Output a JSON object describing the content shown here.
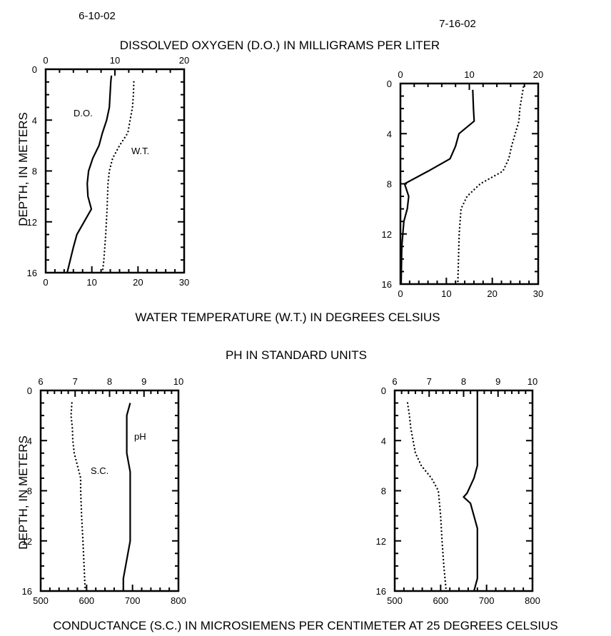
{
  "labels": {
    "date_left": "6-10-02",
    "date_right": "7-16-02",
    "do_axis": "DISSOLVED OXYGEN (D.O.) IN MILLIGRAMS PER LITER",
    "wt_axis": "WATER TEMPERATURE (W.T.) IN DEGREES CELSIUS",
    "ph_axis": "PH IN STANDARD UNITS",
    "sc_axis": "CONDUCTANCE (S.C.) IN MICROSIEMENS PER CENTIMETER AT 25 DEGREES CELSIUS",
    "depth_axis": "DEPTH, IN METERS"
  },
  "chart_data": [
    {
      "type": "line",
      "date": "6-10-02",
      "ylabel": "DEPTH, IN METERS",
      "ylim": [
        0,
        16
      ],
      "y_inverted": true,
      "yticks": [
        0,
        4,
        8,
        12,
        16
      ],
      "top_axis": {
        "label": "DISSOLVED OXYGEN (D.O.) IN MILLIGRAMS PER LITER",
        "lim": [
          0,
          20
        ],
        "ticks": [
          0,
          10,
          20
        ]
      },
      "bottom_axis": {
        "label": "WATER TEMPERATURE (W.T.) IN DEGREES CELSIUS",
        "lim": [
          0,
          30
        ],
        "ticks": [
          0,
          10,
          20,
          30
        ]
      },
      "series": [
        {
          "name": "D.O.",
          "axis": "top",
          "style": "solid",
          "x": [
            9.5,
            9.4,
            9.3,
            9.2,
            8.8,
            8.2,
            7.7,
            6.8,
            6.2,
            6.0,
            6.1,
            6.6,
            4.5,
            4.0,
            3.1
          ],
          "y": [
            0.5,
            1,
            2,
            3,
            4,
            5,
            6,
            7,
            8,
            9,
            10,
            11,
            13,
            14,
            16
          ]
        },
        {
          "name": "W.T.",
          "axis": "bottom",
          "style": "dotted",
          "x": [
            19.1,
            19.0,
            18.8,
            18.3,
            17.8,
            16.0,
            14.5,
            13.8,
            13.5,
            13.3,
            13.0,
            12.6,
            12.3
          ],
          "y": [
            1,
            2,
            3,
            4,
            5,
            6,
            7,
            8,
            9,
            11,
            13,
            15,
            16
          ]
        }
      ]
    },
    {
      "type": "line",
      "date": "7-16-02",
      "ylabel": "",
      "ylim": [
        0,
        16
      ],
      "y_inverted": true,
      "yticks": [
        0,
        4,
        8,
        12,
        16
      ],
      "top_axis": {
        "label": "",
        "lim": [
          0,
          20
        ],
        "ticks": [
          0,
          10,
          20
        ]
      },
      "bottom_axis": {
        "label": "",
        "lim": [
          0,
          30
        ],
        "ticks": [
          0,
          10,
          20,
          30
        ]
      },
      "series": [
        {
          "name": "",
          "axis": "top",
          "style": "solid",
          "x": [
            10.5,
            10.6,
            10.7,
            8.5,
            8.0,
            7.2,
            4.0,
            0.6,
            1.2,
            1.0,
            0.5,
            0.2,
            0.1
          ],
          "y": [
            0.5,
            2,
            3,
            4,
            5,
            6,
            7,
            8,
            9,
            10,
            11,
            13,
            16
          ]
        },
        {
          "name": "",
          "axis": "bottom",
          "style": "dotted",
          "x": [
            26.9,
            26.0,
            25.8,
            25.0,
            24.2,
            23.6,
            22.3,
            17.4,
            14.5,
            13.2,
            12.8,
            12.5
          ],
          "y": [
            0,
            2,
            3,
            4,
            5,
            6,
            7,
            8,
            9,
            10,
            12,
            16
          ]
        }
      ]
    },
    {
      "type": "line",
      "date": "6-10-02",
      "ylabel": "DEPTH, IN METERS",
      "ylim": [
        0,
        16
      ],
      "y_inverted": true,
      "yticks": [
        0,
        4,
        8,
        12,
        16
      ],
      "top_axis": {
        "label": "PH IN STANDARD UNITS",
        "lim": [
          6,
          10
        ],
        "ticks": [
          6,
          7,
          8,
          9,
          10
        ]
      },
      "bottom_axis": {
        "label": "CONDUCTANCE (S.C.) IN MICROSIEMENS PER CENTIMETER AT 25 DEGREES CELSIUS",
        "lim": [
          500,
          800
        ],
        "ticks": [
          500,
          600,
          700,
          800
        ]
      },
      "series": [
        {
          "name": "pH",
          "axis": "top",
          "style": "solid",
          "x": [
            8.6,
            8.5,
            8.5,
            8.5,
            8.6,
            8.6,
            8.6,
            8.6,
            8.4,
            8.4
          ],
          "y": [
            1,
            2,
            4,
            5,
            6.5,
            8,
            11,
            12,
            15,
            16
          ]
        },
        {
          "name": "S.C.",
          "axis": "bottom",
          "style": "dotted",
          "x": [
            568,
            566,
            569,
            570,
            573,
            580,
            587,
            587,
            589,
            592,
            597
          ],
          "y": [
            1,
            2,
            3,
            4,
            5,
            6,
            7,
            8,
            10,
            12,
            16
          ]
        }
      ]
    },
    {
      "type": "line",
      "date": "7-16-02",
      "ylabel": "",
      "ylim": [
        0,
        16
      ],
      "y_inverted": true,
      "yticks": [
        0,
        4,
        8,
        12,
        16
      ],
      "top_axis": {
        "label": "",
        "lim": [
          6,
          10
        ],
        "ticks": [
          6,
          7,
          8,
          9,
          10
        ]
      },
      "bottom_axis": {
        "label": "",
        "lim": [
          500,
          800
        ],
        "ticks": [
          500,
          600,
          700,
          800
        ]
      },
      "series": [
        {
          "name": "",
          "axis": "top",
          "style": "solid",
          "x": [
            8.4,
            8.4,
            8.4,
            8.4,
            8.3,
            8.1,
            8.0,
            8.2,
            8.4,
            8.4,
            8.4,
            8.3
          ],
          "y": [
            0,
            2,
            4,
            6,
            7,
            8.2,
            8.5,
            9,
            11,
            13,
            15,
            16
          ]
        },
        {
          "name": "",
          "axis": "bottom",
          "style": "dotted",
          "x": [
            528,
            532,
            535,
            540,
            545,
            558,
            580,
            595,
            600,
            603,
            607,
            612
          ],
          "y": [
            1,
            2,
            3,
            4,
            5,
            6,
            7,
            8,
            10,
            12,
            14,
            16
          ]
        }
      ]
    }
  ]
}
